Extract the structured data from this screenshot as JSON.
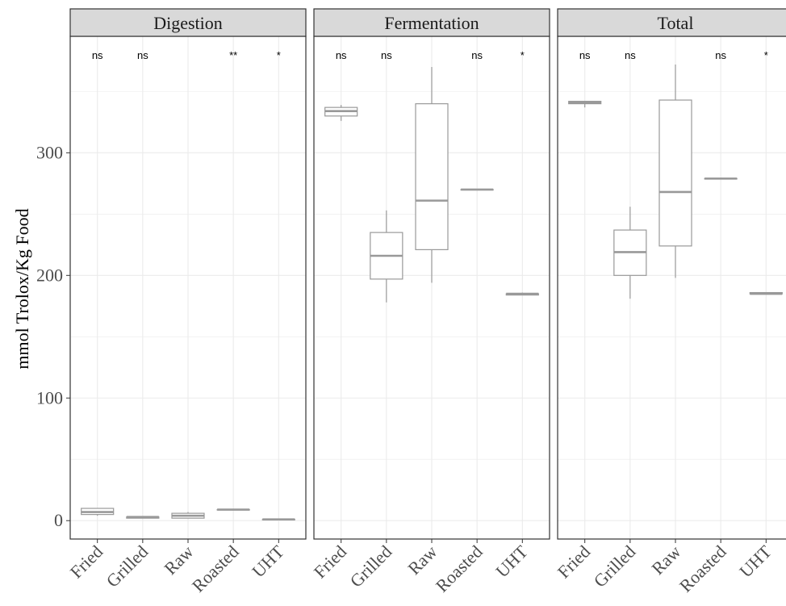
{
  "chart_data": {
    "type": "box",
    "ylabel": "mmol Trolox/Kg Food",
    "xlabel": "",
    "ylim": [
      -15,
      395
    ],
    "yticks": [
      0,
      100,
      200,
      300
    ],
    "grid": true,
    "categories": [
      "Fried",
      "Grilled",
      "Raw",
      "Roasted",
      "UHT"
    ],
    "colors": {
      "box": "#999999",
      "panel_border": "#333333",
      "strip_fill": "#d9d9d9",
      "grid": "#ebebeb"
    },
    "panels": [
      {
        "title": "Digestion",
        "significance": [
          "ns",
          "ns",
          "",
          "**",
          "*"
        ],
        "boxes": [
          {
            "min": 4,
            "q1": 5,
            "median": 7,
            "q3": 10,
            "max": 10
          },
          {
            "min": 2,
            "q1": 2,
            "median": 3,
            "q3": 3,
            "max": 3
          },
          {
            "min": 2,
            "q1": 2,
            "median": 4,
            "q3": 6,
            "max": 7
          },
          {
            "min": 9,
            "q1": 9,
            "median": 9,
            "q3": 9,
            "max": 9
          },
          {
            "min": 1,
            "q1": 1,
            "median": 1,
            "q3": 1,
            "max": 1
          }
        ]
      },
      {
        "title": "Fermentation",
        "significance": [
          "ns",
          "ns",
          "",
          "ns",
          "*"
        ],
        "boxes": [
          {
            "min": 326,
            "q1": 330,
            "median": 334,
            "q3": 337,
            "max": 339
          },
          {
            "min": 178,
            "q1": 197,
            "median": 216,
            "q3": 235,
            "max": 253
          },
          {
            "min": 194,
            "q1": 221,
            "median": 261,
            "q3": 340,
            "max": 370
          },
          {
            "min": 270,
            "q1": 270,
            "median": 270,
            "q3": 270,
            "max": 270
          },
          {
            "min": 184,
            "q1": 184,
            "median": 185,
            "q3": 185,
            "max": 186
          }
        ]
      },
      {
        "title": "Total",
        "significance": [
          "ns",
          "ns",
          "",
          "ns",
          "*"
        ],
        "boxes": [
          {
            "min": 337,
            "q1": 340,
            "median": 341,
            "q3": 342,
            "max": 342
          },
          {
            "min": 181,
            "q1": 200,
            "median": 219,
            "q3": 237,
            "max": 256
          },
          {
            "min": 198,
            "q1": 224,
            "median": 268,
            "q3": 343,
            "max": 372
          },
          {
            "min": 279,
            "q1": 279,
            "median": 279,
            "q3": 279,
            "max": 279
          },
          {
            "min": 185,
            "q1": 185,
            "median": 185,
            "q3": 186,
            "max": 186
          }
        ]
      }
    ]
  }
}
